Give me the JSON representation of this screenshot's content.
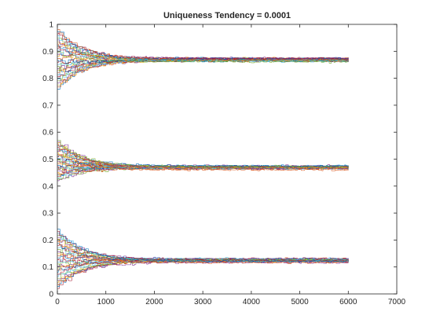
{
  "chart_data": {
    "type": "line",
    "title": "Uniqueness Tendency = 0.0001",
    "xlabel": "",
    "ylabel": "",
    "xlim": [
      0,
      7000
    ],
    "ylim": [
      0,
      1
    ],
    "xticks": [
      0,
      1000,
      2000,
      3000,
      4000,
      5000,
      6000,
      7000
    ],
    "yticks": [
      0,
      0.1,
      0.2,
      0.3,
      0.4,
      0.5,
      0.6,
      0.7,
      0.8,
      0.9,
      1
    ],
    "grid": false,
    "legend": "none",
    "x_end": 6000,
    "traces_per_band": 30,
    "bands": [
      {
        "name": "upper",
        "converged_value": 0.87,
        "start_min": 0.76,
        "start_max": 0.98
      },
      {
        "name": "middle",
        "converged_value": 0.47,
        "start_min": 0.42,
        "start_max": 0.57
      },
      {
        "name": "lower",
        "converged_value": 0.125,
        "start_min": 0.02,
        "start_max": 0.24
      }
    ],
    "series_colors": [
      "#0072BD",
      "#D95319",
      "#EDB120",
      "#7E2F8E",
      "#77AC30",
      "#4DBEEE",
      "#A2142F"
    ]
  }
}
